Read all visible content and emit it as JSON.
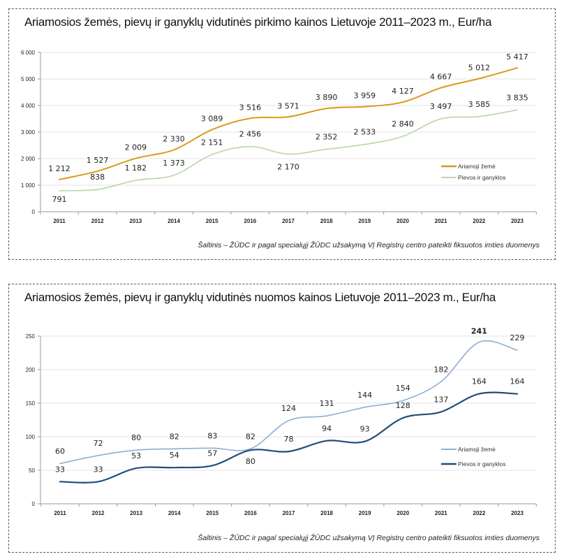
{
  "chart_data": [
    {
      "type": "line",
      "title": "Ariamosios žemės, pievų ir ganyklų vidutinės pirkimo kainos Lietuvoje 2011–2023 m., Eur/ha",
      "source": "Šaltinis – ŽŪDC ir pagal specialųjį ŽŪDC užsakymą VĮ Registrų centro pateikti fiksuotos imties duomenys",
      "xlabel": "",
      "ylabel": "",
      "categories": [
        "2011",
        "2012",
        "2013",
        "2014",
        "2015",
        "2016",
        "2017",
        "2018",
        "2019",
        "2020",
        "2021",
        "2022",
        "2023"
      ],
      "ylim": [
        0,
        6000
      ],
      "yticks": [
        0,
        1000,
        2000,
        3000,
        4000,
        5000,
        6000
      ],
      "ytick_labels": [
        "0",
        "1 000",
        "2 000",
        "3 000",
        "4 000",
        "5 000",
        "6 000"
      ],
      "grid": true,
      "legend_position": "right",
      "series": [
        {
          "name": "Ariamoji žemė",
          "color": "#d99a1e",
          "values": [
            1212,
            1527,
            2009,
            2330,
            3089,
            3516,
            3571,
            3890,
            3959,
            4127,
            4667,
            5012,
            5417
          ],
          "labels": [
            "1 212",
            "1 527",
            "2 009",
            "2 330",
            "3 089",
            "3 516",
            "3 571",
            "3 890",
            "3 959",
            "4 127",
            "4 667",
            "5 012",
            "5 417"
          ]
        },
        {
          "name": "Pievos ir ganyklos",
          "color": "#b7d7a8",
          "values": [
            791,
            838,
            1182,
            1373,
            2151,
            2456,
            2170,
            2352,
            2533,
            2840,
            3497,
            3585,
            3835
          ],
          "labels": [
            "791",
            "838",
            "1 182",
            "1 373",
            "2 151",
            "2 456",
            "2 170",
            "2 352",
            "2 533",
            "2 840",
            "3 497",
            "3 585",
            "3 835"
          ]
        }
      ]
    },
    {
      "type": "line",
      "title": "Ariamosios žemės, pievų ir ganyklų vidutinės nuomos kainos Lietuvoje 2011–2023 m., Eur/ha",
      "source": "Šaltinis – ŽŪDC ir pagal specialųjį ŽŪDC užsakymą VĮ Registrų centro pateikti fiksuotos imties duomenys",
      "xlabel": "",
      "ylabel": "",
      "categories": [
        "2011",
        "2012",
        "2013",
        "2014",
        "2015",
        "2016",
        "2017",
        "2018",
        "2019",
        "2020",
        "2021",
        "2022",
        "2023"
      ],
      "ylim": [
        0,
        250
      ],
      "yticks": [
        0,
        50,
        100,
        150,
        200,
        250
      ],
      "ytick_labels": [
        "0",
        "50",
        "100",
        "150",
        "200",
        "250"
      ],
      "grid": true,
      "legend_position": "right",
      "series": [
        {
          "name": "Ariamoji žemė",
          "color": "#8eaed6",
          "values": [
            60,
            72,
            80,
            82,
            83,
            82,
            124,
            131,
            144,
            154,
            182,
            241,
            229
          ],
          "labels": [
            "60",
            "72",
            "80",
            "82",
            "83",
            "82",
            "124",
            "131",
            "144",
            "154",
            "182",
            "241",
            "229"
          ]
        },
        {
          "name": "Pievos ir ganyklos",
          "color": "#1f4e79",
          "values": [
            33,
            33,
            53,
            54,
            57,
            80,
            78,
            94,
            93,
            128,
            137,
            164,
            164
          ],
          "labels": [
            "33",
            "33",
            "53",
            "54",
            "57",
            "80",
            "78",
            "94",
            "93",
            "128",
            "137",
            "164",
            "164"
          ]
        }
      ]
    }
  ]
}
